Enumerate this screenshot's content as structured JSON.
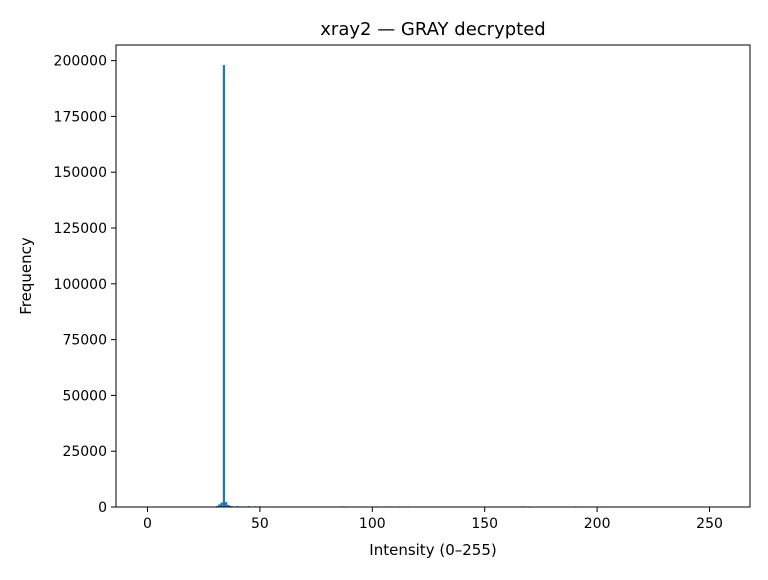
{
  "chart_data": {
    "type": "bar",
    "title": "xray2 — GRAY decrypted",
    "xlabel": "Intensity (0–255)",
    "ylabel": "Frequency",
    "xlim": [
      -14,
      268
    ],
    "ylim": [
      0,
      207000
    ],
    "xticks": [
      0,
      50,
      100,
      150,
      200,
      250
    ],
    "yticks": [
      0,
      25000,
      50000,
      75000,
      100000,
      125000,
      150000,
      175000,
      200000
    ],
    "bar_color": "#1f77b4",
    "grid": false,
    "x": [
      31,
      32,
      33,
      34,
      35,
      36,
      37,
      38,
      40,
      42,
      45,
      48,
      50,
      53,
      56,
      85,
      86,
      87,
      88,
      101,
      102,
      104,
      106,
      108,
      110,
      112,
      114,
      116,
      118,
      166,
      167,
      168,
      170,
      188,
      190,
      192,
      194,
      198,
      202
    ],
    "values": [
      500,
      1200,
      2000,
      198000,
      2200,
      900,
      500,
      300,
      400,
      300,
      400,
      300,
      300,
      250,
      200,
      200,
      250,
      300,
      200,
      250,
      300,
      200,
      250,
      300,
      200,
      300,
      250,
      300,
      200,
      250,
      300,
      200,
      150,
      200,
      300,
      250,
      200,
      200,
      200
    ]
  }
}
